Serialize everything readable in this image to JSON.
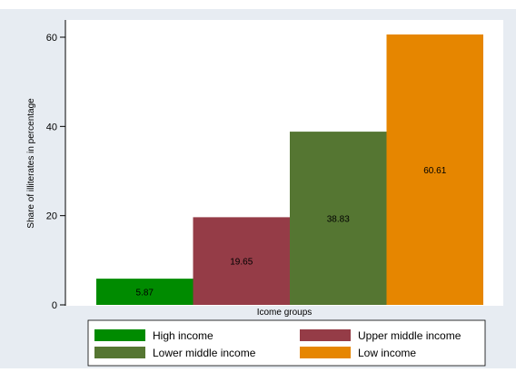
{
  "chart_data": {
    "type": "bar",
    "title": "",
    "xlabel": "Icome groups",
    "ylabel": "Share of illiterates in percentage",
    "ylim": [
      0,
      62
    ],
    "yticks": [
      0,
      20,
      40,
      60
    ],
    "grid": false,
    "legend_position": "bottom",
    "series": [
      {
        "name": "High income",
        "value": 5.87,
        "label": "5.87",
        "color": "#008b00"
      },
      {
        "name": "Upper middle income",
        "value": 19.65,
        "label": "19.65",
        "color": "#953c47"
      },
      {
        "name": "Lower middle income",
        "value": 38.83,
        "label": "38.83",
        "color": "#557632"
      },
      {
        "name": "Low income",
        "value": 60.61,
        "label": "60.61",
        "color": "#e68600"
      }
    ]
  },
  "colors": {
    "background": "#e7ecf2",
    "plot_background": "#ffffff",
    "axis": "#000000"
  }
}
